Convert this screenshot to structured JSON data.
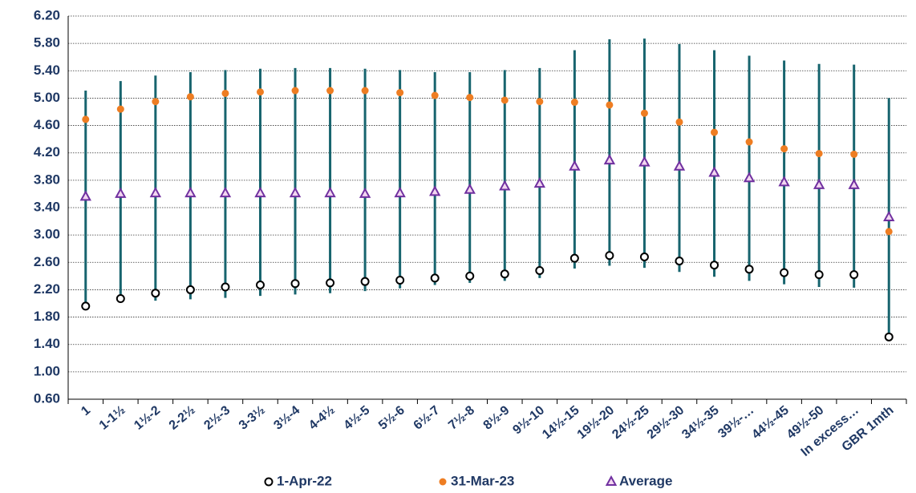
{
  "chart_data": {
    "type": "range",
    "categories": [
      "1",
      "1-1½",
      "1½-2",
      "2-2½",
      "2½-3",
      "3-3½",
      "3½-4",
      "4-4½",
      "4½-5",
      "5½-6",
      "6½-7",
      "7½-8",
      "8½-9",
      "9½-10",
      "14½-15",
      "19½-20",
      "24½-25",
      "29½-30",
      "34½-35",
      "39½-…",
      "44½-45",
      "49½-50",
      "In excess…",
      "GBR 1mth"
    ],
    "ranges": {
      "color": "#17646e",
      "high": [
        5.11,
        5.25,
        5.33,
        5.38,
        5.41,
        5.43,
        5.44,
        5.44,
        5.43,
        5.41,
        5.38,
        5.38,
        5.41,
        5.44,
        5.7,
        5.86,
        5.87,
        5.79,
        5.7,
        5.62,
        5.55,
        5.5,
        5.49,
        5.0
      ],
      "low": [
        1.96,
        2.07,
        2.04,
        2.06,
        2.08,
        2.11,
        2.13,
        2.15,
        2.18,
        2.22,
        2.27,
        2.3,
        2.33,
        2.37,
        2.51,
        2.55,
        2.52,
        2.46,
        2.39,
        2.33,
        2.28,
        2.24,
        2.23,
        1.51
      ]
    },
    "series": [
      {
        "name": "1-Apr-22",
        "marker": "circle",
        "color": "#000000",
        "values": [
          1.96,
          2.07,
          2.15,
          2.2,
          2.24,
          2.27,
          2.29,
          2.3,
          2.32,
          2.34,
          2.37,
          2.4,
          2.43,
          2.48,
          2.66,
          2.7,
          2.68,
          2.62,
          2.56,
          2.5,
          2.45,
          2.42,
          2.42,
          1.51
        ]
      },
      {
        "name": "31-Mar-23",
        "marker": "dot",
        "color": "#ee7d22",
        "values": [
          4.69,
          4.84,
          4.95,
          5.02,
          5.07,
          5.09,
          5.11,
          5.11,
          5.11,
          5.08,
          5.04,
          5.01,
          4.97,
          4.95,
          4.94,
          4.9,
          4.78,
          4.65,
          4.5,
          4.36,
          4.26,
          4.19,
          4.18,
          3.05
        ]
      },
      {
        "name": "Average",
        "marker": "triangle",
        "color": "#7030a0",
        "values": [
          3.56,
          3.6,
          3.61,
          3.61,
          3.61,
          3.61,
          3.61,
          3.61,
          3.6,
          3.61,
          3.63,
          3.66,
          3.71,
          3.75,
          4.0,
          4.09,
          4.06,
          4.0,
          3.91,
          3.83,
          3.77,
          3.73,
          3.73,
          3.26
        ]
      }
    ],
    "ylim": [
      0.6,
      6.2
    ],
    "yticks": [
      {
        "value": 0.6,
        "label": "0.60"
      },
      {
        "value": 1,
        "label": "1.00"
      },
      {
        "value": 1.4,
        "label": "1.40"
      },
      {
        "value": 1.8,
        "label": "1.80"
      },
      {
        "value": 2.2,
        "label": "2.20"
      },
      {
        "value": 2.6,
        "label": "2.60"
      },
      {
        "value": 3,
        "label": "3.00"
      },
      {
        "value": 3.4,
        "label": "3.40"
      },
      {
        "value": 3.8,
        "label": "3.80"
      },
      {
        "value": 4.2,
        "label": "4.20"
      },
      {
        "value": 4.6,
        "label": "4.60"
      },
      {
        "value": 5,
        "label": "5.00"
      },
      {
        "value": 5.4,
        "label": "5.40"
      },
      {
        "value": 5.8,
        "label": "5.80"
      },
      {
        "value": 6.2,
        "label": "6.20"
      }
    ],
    "grid": true,
    "legend": "bottom"
  }
}
